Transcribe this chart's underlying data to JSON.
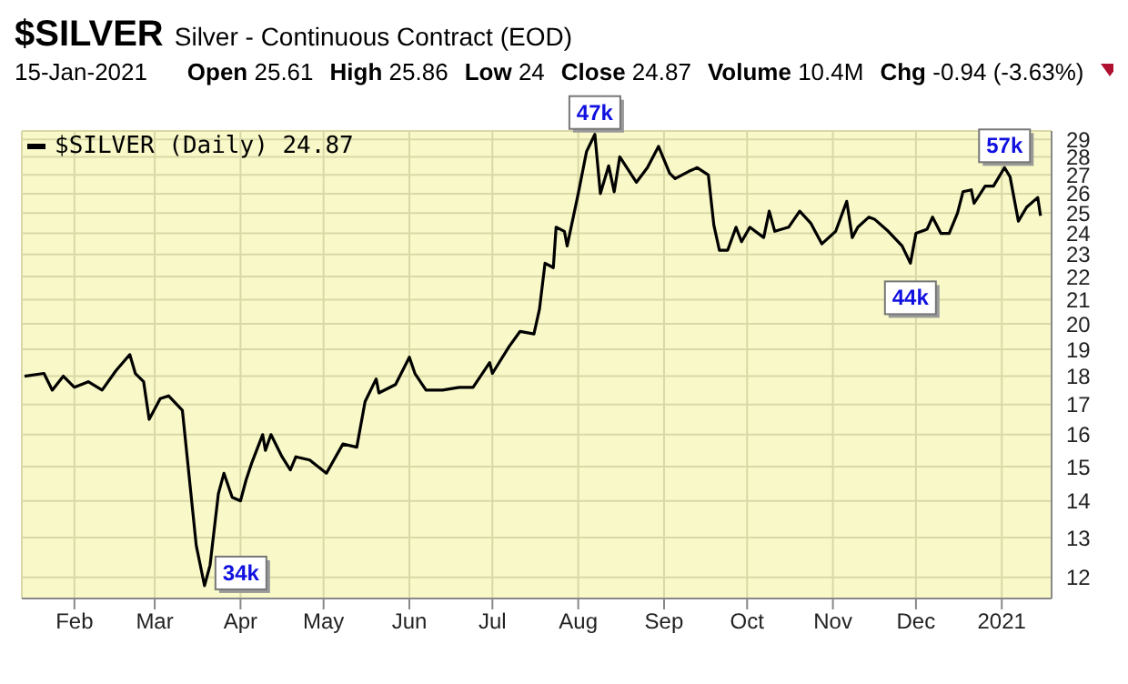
{
  "chart_data": {
    "type": "line",
    "title": "$SILVER",
    "subtitle": "Silver - Continuous Contract (EOD)",
    "annotations": [
      "15-Jan-2021",
      "Open 25.61",
      "High 25.86",
      "Low 24",
      "Close 24.87",
      "Volume 10.4M",
      "Chg -0.94 (-3.63%)",
      {
        "text": "34k",
        "x": "2020-03-19",
        "y": 11.8
      },
      {
        "text": "47k",
        "x": "2020-08-07",
        "y": 29.3
      },
      {
        "text": "44k",
        "x": "2020-11-29",
        "y": 22.6
      },
      {
        "text": "57k",
        "x": "2021-01-02",
        "y": 27.4
      }
    ],
    "x": [
      "2020-01-14",
      "2020-01-21",
      "2020-01-24",
      "2020-01-28",
      "2020-02-01",
      "2020-02-06",
      "2020-02-11",
      "2020-02-16",
      "2020-02-21",
      "2020-02-23",
      "2020-02-26",
      "2020-02-28",
      "2020-03-03",
      "2020-03-06",
      "2020-03-11",
      "2020-03-16",
      "2020-03-19",
      "2020-03-21",
      "2020-03-24",
      "2020-03-26",
      "2020-03-29",
      "2020-04-01",
      "2020-04-03",
      "2020-04-05",
      "2020-04-09",
      "2020-04-10",
      "2020-04-12",
      "2020-04-16",
      "2020-04-19",
      "2020-04-21",
      "2020-04-26",
      "2020-05-02",
      "2020-05-08",
      "2020-05-13",
      "2020-05-16",
      "2020-05-20",
      "2020-05-21",
      "2020-05-27",
      "2020-06-01",
      "2020-06-03",
      "2020-06-07",
      "2020-06-13",
      "2020-06-19",
      "2020-06-24",
      "2020-06-30",
      "2020-07-01",
      "2020-07-07",
      "2020-07-11",
      "2020-07-16",
      "2020-07-18",
      "2020-07-20",
      "2020-07-23",
      "2020-07-24",
      "2020-07-27",
      "2020-07-28",
      "2020-08-01",
      "2020-08-04",
      "2020-08-07",
      "2020-08-09",
      "2020-08-12",
      "2020-08-14",
      "2020-08-16",
      "2020-08-22",
      "2020-08-26",
      "2020-08-30",
      "2020-09-03",
      "2020-09-05",
      "2020-09-10",
      "2020-09-13",
      "2020-09-17",
      "2020-09-19",
      "2020-09-21",
      "2020-09-24",
      "2020-09-27",
      "2020-09-29",
      "2020-10-02",
      "2020-10-07",
      "2020-10-09",
      "2020-10-11",
      "2020-10-16",
      "2020-10-20",
      "2020-10-24",
      "2020-10-28",
      "2020-11-02",
      "2020-11-06",
      "2020-11-08",
      "2020-11-10",
      "2020-11-14",
      "2020-11-16",
      "2020-11-21",
      "2020-11-26",
      "2020-11-29",
      "2020-12-01",
      "2020-12-05",
      "2020-12-07",
      "2020-12-10",
      "2020-12-13",
      "2020-12-16",
      "2020-12-18",
      "2020-12-21",
      "2020-12-22",
      "2020-12-26",
      "2020-12-29",
      "2021-01-02",
      "2021-01-04",
      "2021-01-07",
      "2021-01-10",
      "2021-01-14",
      "2021-01-15"
    ],
    "series": [
      {
        "name": "$SILVER (Daily) 24.87",
        "color": "#000000",
        "values": [
          18.0,
          18.1,
          17.5,
          18.0,
          17.6,
          17.8,
          17.5,
          18.2,
          18.8,
          18.1,
          17.8,
          16.5,
          17.2,
          17.3,
          16.8,
          12.8,
          11.8,
          12.3,
          14.2,
          14.8,
          14.1,
          14.0,
          14.6,
          15.1,
          16.0,
          15.5,
          16.0,
          15.3,
          14.9,
          15.3,
          15.2,
          14.8,
          15.7,
          15.6,
          17.1,
          17.9,
          17.4,
          17.7,
          18.7,
          18.1,
          17.5,
          17.5,
          17.6,
          17.6,
          18.5,
          18.1,
          19.1,
          19.7,
          19.6,
          20.6,
          22.6,
          22.4,
          24.3,
          24.1,
          23.4,
          26.0,
          28.3,
          29.3,
          26.0,
          27.5,
          26.1,
          28.0,
          26.6,
          27.4,
          28.6,
          27.1,
          26.8,
          27.2,
          27.4,
          27.0,
          24.4,
          23.2,
          23.2,
          24.3,
          23.6,
          24.3,
          23.8,
          25.1,
          24.1,
          24.3,
          25.1,
          24.5,
          23.5,
          24.1,
          25.6,
          23.8,
          24.3,
          24.8,
          24.7,
          24.1,
          23.4,
          22.6,
          24.0,
          24.2,
          24.8,
          24.0,
          24.0,
          25.0,
          26.1,
          26.2,
          25.5,
          26.4,
          26.4,
          27.4,
          26.9,
          24.6,
          25.3,
          25.8,
          24.87
        ]
      }
    ],
    "xlim": [
      "2020-01-13",
      "2021-01-19"
    ],
    "xticks": [
      {
        "value": "2020-02-01",
        "label": "Feb"
      },
      {
        "value": "2020-03-01",
        "label": "Mar"
      },
      {
        "value": "2020-04-01",
        "label": "Apr"
      },
      {
        "value": "2020-05-01",
        "label": "May"
      },
      {
        "value": "2020-06-01",
        "label": "Jun"
      },
      {
        "value": "2020-07-01",
        "label": "Jul"
      },
      {
        "value": "2020-08-01",
        "label": "Aug"
      },
      {
        "value": "2020-09-01",
        "label": "Sep"
      },
      {
        "value": "2020-10-01",
        "label": "Oct"
      },
      {
        "value": "2020-11-01",
        "label": "Nov"
      },
      {
        "value": "2020-12-01",
        "label": "Dec"
      },
      {
        "value": "2021-01-01",
        "label": "2021"
      }
    ],
    "ylim": [
      11.5,
      29.5
    ],
    "yticks": [
      12,
      13,
      14,
      15,
      16,
      17,
      18,
      19,
      20,
      21,
      22,
      23,
      24,
      25,
      26,
      27,
      28,
      29
    ],
    "log": "y",
    "grid": true,
    "legend": "top left",
    "marker": "none",
    "line_style": "solid"
  }
}
